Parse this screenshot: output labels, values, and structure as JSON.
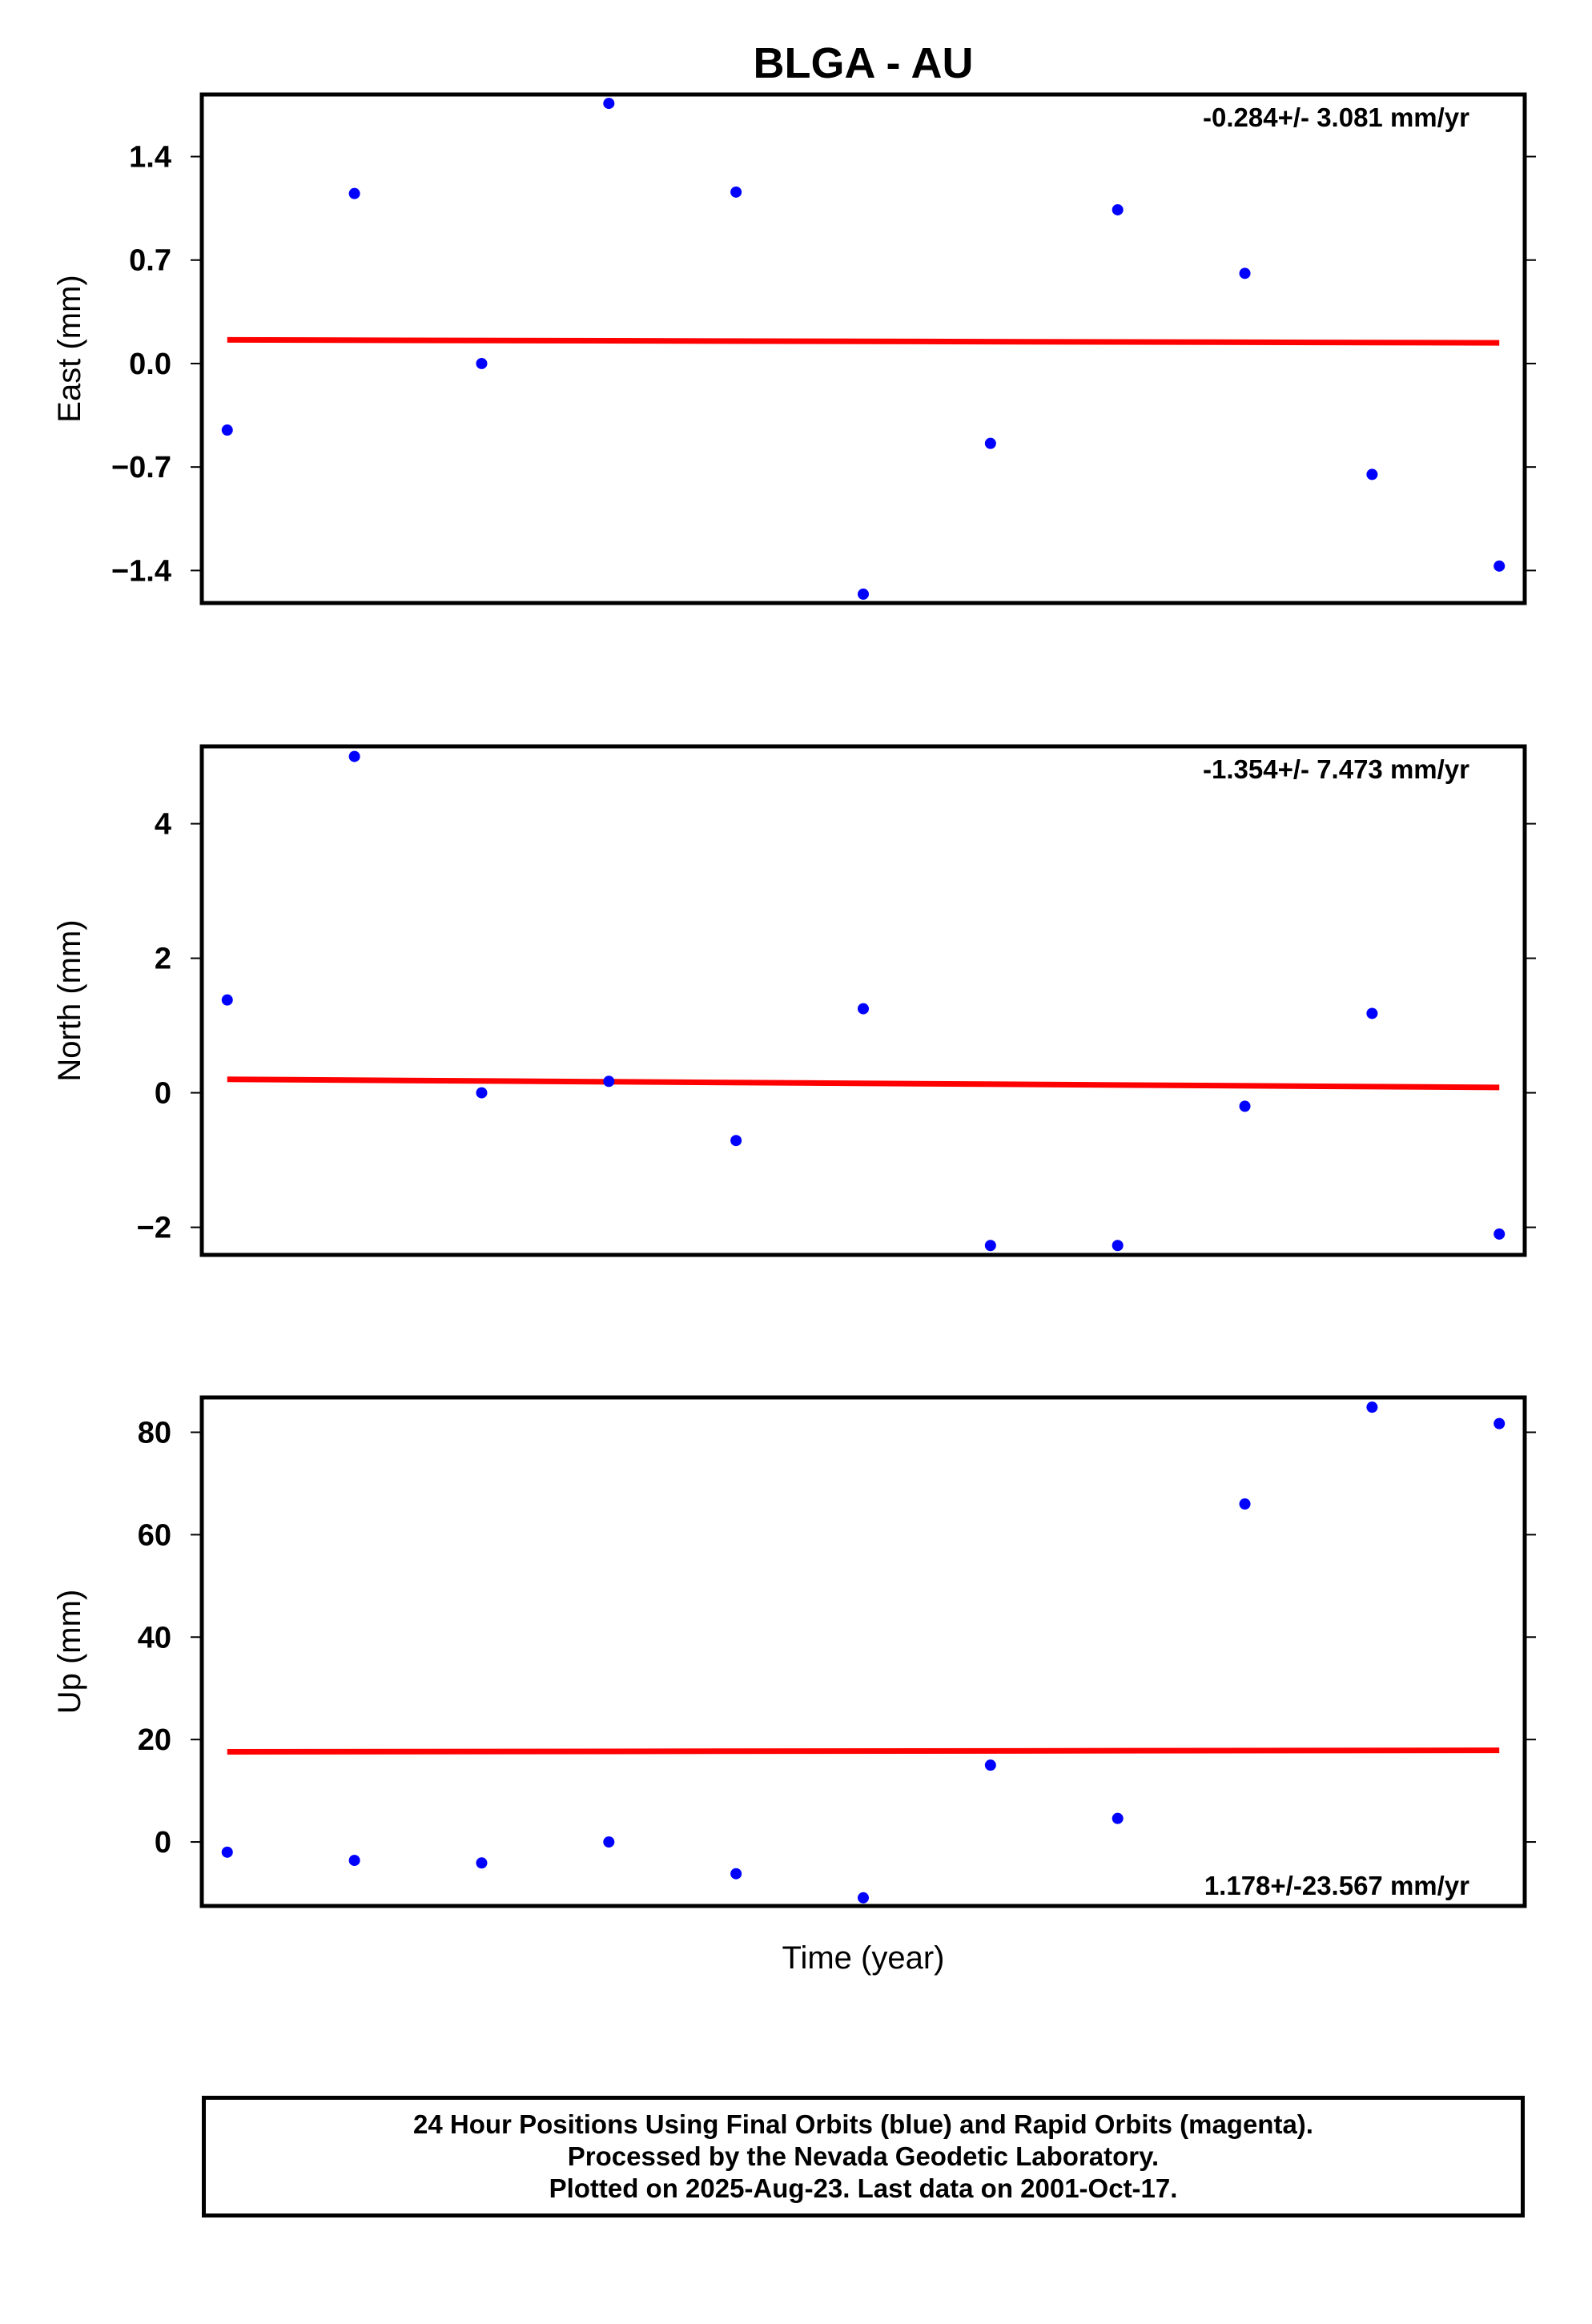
{
  "title": "BLGA - AU",
  "xlabel": "Time (year)",
  "colors": {
    "points": "#0000ff",
    "trend": "#ff0000",
    "axes": "#000000"
  },
  "chart_data": [
    {
      "type": "scatter",
      "ylabel": "East (mm)",
      "ylim": [
        -1.62,
        1.82
      ],
      "yticks": [
        1.4,
        0.7,
        0.0,
        -0.7,
        -1.4
      ],
      "ytick_labels": [
        "1.4",
        "0.7",
        "0.0",
        "−0.7",
        "−1.4"
      ],
      "annotation": "-0.284+/- 3.081 mm/yr",
      "annotation_position": "top-right",
      "x": [
        1,
        2,
        3,
        4,
        5,
        6,
        7,
        8,
        9,
        10,
        11
      ],
      "values": [
        -0.45,
        1.15,
        0.0,
        1.76,
        1.16,
        -1.56,
        -0.54,
        1.04,
        0.61,
        -0.75,
        -1.37
      ],
      "trend": [
        0.16,
        0.14
      ]
    },
    {
      "type": "scatter",
      "ylabel": "North (mm)",
      "ylim": [
        -2.41,
        5.15
      ],
      "yticks": [
        4,
        2,
        0,
        -2
      ],
      "ytick_labels": [
        "4",
        "2",
        "0",
        "−2"
      ],
      "annotation": "-1.354+/- 7.473 mm/yr",
      "annotation_position": "top-right",
      "x": [
        1,
        2,
        3,
        4,
        5,
        6,
        7,
        8,
        9,
        10,
        11
      ],
      "values": [
        1.38,
        5.0,
        0.0,
        0.17,
        -0.71,
        1.25,
        -2.27,
        -2.27,
        -0.2,
        1.18,
        -2.1
      ],
      "trend": [
        0.2,
        0.08
      ]
    },
    {
      "type": "scatter",
      "ylabel": "Up (mm)",
      "ylim": [
        -12.5,
        86.8
      ],
      "yticks": [
        80,
        60,
        40,
        20,
        0
      ],
      "ytick_labels": [
        "80",
        "60",
        "40",
        "20",
        "0"
      ],
      "annotation": "1.178+/-23.567 mm/yr",
      "annotation_position": "bottom-right",
      "x": [
        1,
        2,
        3,
        4,
        5,
        6,
        7,
        8,
        9,
        10,
        11
      ],
      "values": [
        -2.0,
        -3.6,
        -4.1,
        0.0,
        -6.2,
        -10.9,
        15.0,
        4.6,
        66.0,
        84.9,
        81.7
      ],
      "trend": [
        17.6,
        17.9
      ]
    }
  ],
  "footer": {
    "line1": "24 Hour Positions Using Final Orbits (blue) and Rapid Orbits (magenta).",
    "line2": "Processed by the Nevada Geodetic Laboratory.",
    "line3": "Plotted on 2025-Aug-23. Last data on 2001-Oct-17."
  }
}
